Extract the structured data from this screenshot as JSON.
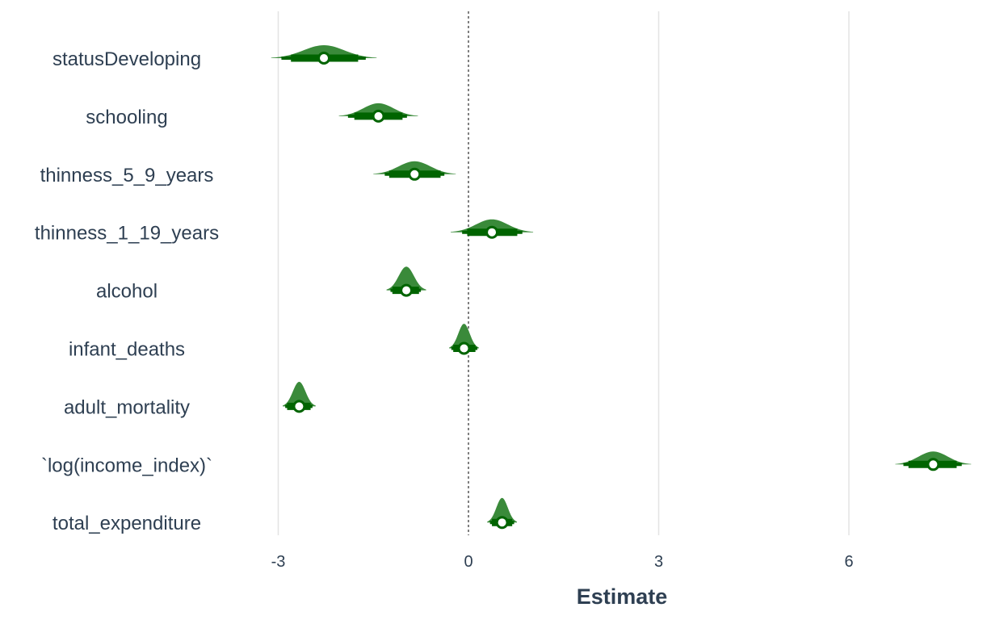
{
  "chart_data": {
    "type": "half-eye interval plot",
    "xlabel": "Estimate",
    "xticks": [
      -3,
      0,
      3,
      6
    ],
    "xlim": [
      -4.3,
      8.3
    ],
    "grid": "vertical major gridlines",
    "reference_line": {
      "x": 0,
      "style": "dashed"
    },
    "colors": {
      "slab": "#3a8a3a",
      "interval": "#006400",
      "point_fill": "#ffffff",
      "text": "#2e3f52"
    },
    "categories": [
      "statusDeveloping",
      "schooling",
      "thinness_5_9_years",
      "thinness_1_19_years",
      "alcohol",
      "infant_deaths",
      "adult_mortality",
      "`log(income_index)`",
      "total_expenditure"
    ],
    "series": [
      {
        "values": [
          {
            "estimate": -2.28,
            "ci66": [
              -2.8,
              -1.74
            ],
            "ci95": [
              -2.95,
              -1.62
            ],
            "sd": 0.32
          },
          {
            "estimate": -1.42,
            "ci66": [
              -1.8,
              -1.04
            ],
            "ci95": [
              -1.9,
              -0.97
            ],
            "sd": 0.24
          },
          {
            "estimate": -0.85,
            "ci66": [
              -1.25,
              -0.44
            ],
            "ci95": [
              -1.32,
              -0.38
            ],
            "sd": 0.25
          },
          {
            "estimate": 0.37,
            "ci66": [
              -0.02,
              0.77
            ],
            "ci95": [
              -0.1,
              0.85
            ],
            "sd": 0.25
          },
          {
            "estimate": -0.98,
            "ci66": [
              -1.2,
              -0.78
            ],
            "ci95": [
              -1.23,
              -0.75
            ],
            "sd": 0.12
          },
          {
            "estimate": -0.07,
            "ci66": [
              -0.24,
              0.11
            ],
            "ci95": [
              -0.27,
              0.14
            ],
            "sd": 0.09
          },
          {
            "estimate": -2.67,
            "ci66": [
              -2.86,
              -2.49
            ],
            "ci95": [
              -2.89,
              -2.46
            ],
            "sd": 0.1
          },
          {
            "estimate": 7.33,
            "ci66": [
              6.94,
              7.7
            ],
            "ci95": [
              6.86,
              7.78
            ],
            "sd": 0.23
          },
          {
            "estimate": 0.53,
            "ci66": [
              0.37,
              0.69
            ],
            "ci95": [
              0.34,
              0.72
            ],
            "sd": 0.09
          }
        ]
      }
    ]
  }
}
